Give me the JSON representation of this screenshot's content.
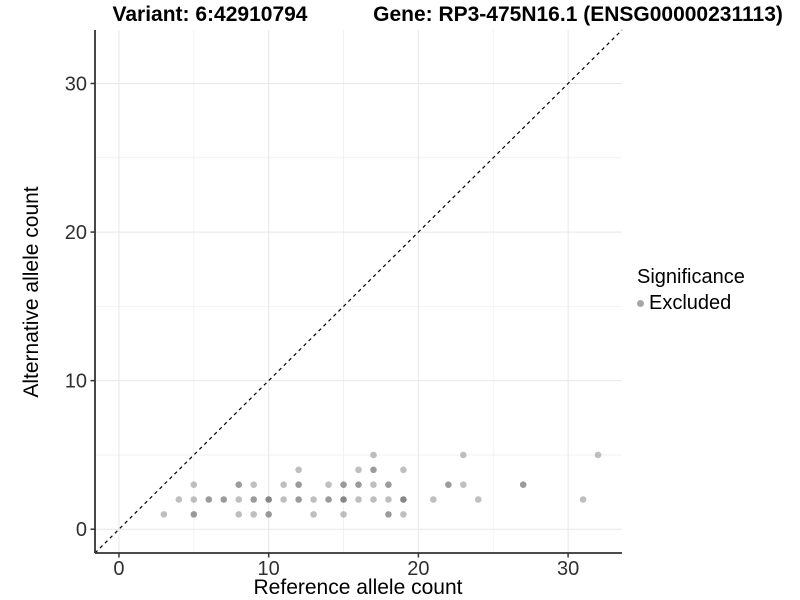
{
  "header": {
    "variant_title": "Variant: 6:42910794",
    "gene_title": "Gene: RP3-475N16.1 (ENSG00000231113)"
  },
  "legend": {
    "title": "Significance",
    "items": [
      {
        "label": "Excluded",
        "color": "#a6a6a6"
      }
    ]
  },
  "chart_data": {
    "type": "scatter",
    "xlabel": "Reference allele count",
    "ylabel": "Alternative allele count",
    "xlim": [
      -1.6,
      33.6
    ],
    "ylim": [
      -1.6,
      33.6
    ],
    "x_ticks": [
      0,
      10,
      20,
      30
    ],
    "y_ticks": [
      0,
      10,
      20,
      30
    ],
    "x_minor_ticks": [
      5,
      15,
      25
    ],
    "y_minor_ticks": [
      5,
      15,
      25
    ],
    "grid": true,
    "major_grid_color": "#e7e7e7",
    "minor_grid_color": "#f2f2f2",
    "axis_line_color": "#333333",
    "identity_line": {
      "slope": 1,
      "intercept": 0,
      "style": "dashed",
      "color": "#000000"
    },
    "point_base_color_rgb": [
      112,
      112,
      112
    ],
    "point_layer_alpha": 0.45,
    "point_radius": 3.3,
    "legend_position": "right",
    "series": [
      {
        "name": "Excluded",
        "points_format": "[x, y, overlap_count]",
        "points": [
          [
            3,
            1,
            1
          ],
          [
            5,
            1,
            2
          ],
          [
            8,
            1,
            1
          ],
          [
            9,
            1,
            1
          ],
          [
            10,
            1,
            2
          ],
          [
            13,
            1,
            1
          ],
          [
            15,
            1,
            1
          ],
          [
            18,
            1,
            2
          ],
          [
            19,
            1,
            1
          ],
          [
            4,
            2,
            1
          ],
          [
            5,
            2,
            1
          ],
          [
            6,
            2,
            2
          ],
          [
            7,
            2,
            2
          ],
          [
            8,
            2,
            1
          ],
          [
            9,
            2,
            2
          ],
          [
            10,
            2,
            3
          ],
          [
            11,
            2,
            1
          ],
          [
            12,
            2,
            2
          ],
          [
            13,
            2,
            1
          ],
          [
            14,
            2,
            2
          ],
          [
            15,
            2,
            3
          ],
          [
            16,
            2,
            1
          ],
          [
            17,
            2,
            1
          ],
          [
            18,
            2,
            1
          ],
          [
            19,
            2,
            3
          ],
          [
            21,
            2,
            1
          ],
          [
            24,
            2,
            1
          ],
          [
            31,
            2,
            1
          ],
          [
            5,
            3,
            1
          ],
          [
            8,
            3,
            2
          ],
          [
            9,
            3,
            1
          ],
          [
            11,
            3,
            1
          ],
          [
            12,
            3,
            2
          ],
          [
            14,
            3,
            1
          ],
          [
            15,
            3,
            2
          ],
          [
            16,
            3,
            2
          ],
          [
            17,
            3,
            1
          ],
          [
            18,
            3,
            2
          ],
          [
            22,
            3,
            2
          ],
          [
            23,
            3,
            1
          ],
          [
            27,
            3,
            2
          ],
          [
            12,
            4,
            1
          ],
          [
            16,
            4,
            1
          ],
          [
            17,
            4,
            2
          ],
          [
            19,
            4,
            1
          ],
          [
            17,
            5,
            1
          ],
          [
            23,
            5,
            1
          ],
          [
            32,
            5,
            1
          ]
        ]
      }
    ]
  }
}
